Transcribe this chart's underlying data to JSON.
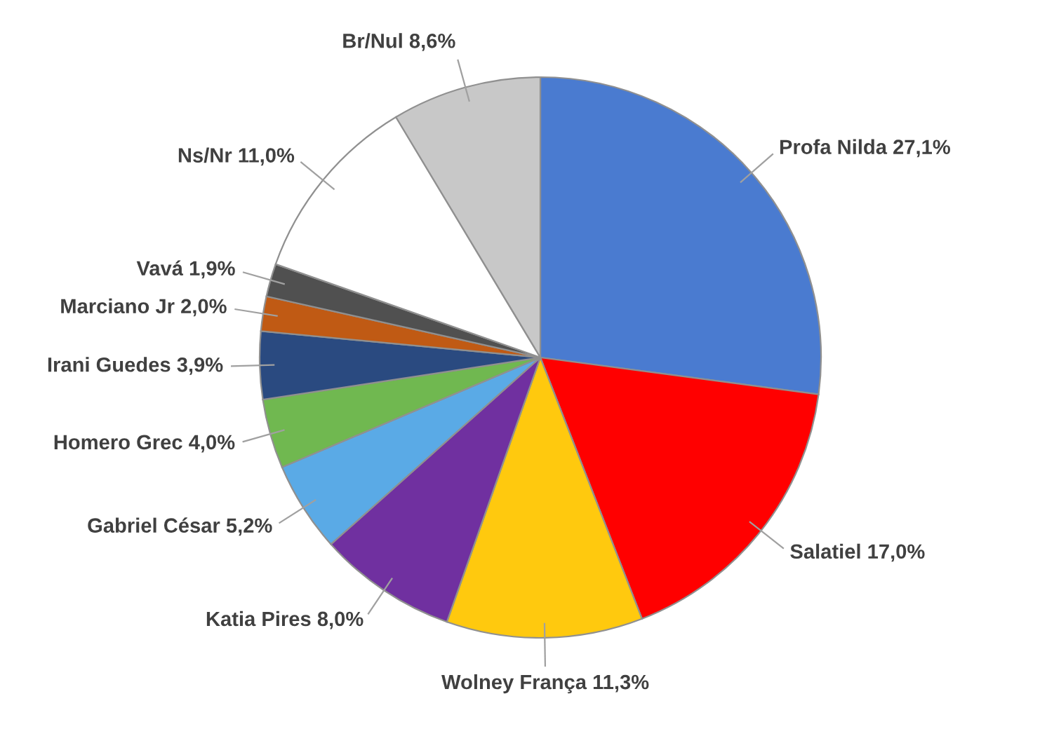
{
  "chart_data": {
    "type": "pie",
    "categories": [
      "Profa Nilda",
      "Salatiel",
      "Wolney França",
      "Katia Pires",
      "Gabriel César",
      "Homero Grec",
      "Irani Guedes",
      "Marciano Jr",
      "Vavá",
      "Ns/Nr",
      "Br/Nul"
    ],
    "values": [
      27.1,
      17.0,
      11.3,
      8.0,
      5.2,
      4.0,
      3.9,
      2.0,
      1.9,
      11.0,
      8.6
    ],
    "value_labels": [
      "27,1%",
      "17,0%",
      "11,3%",
      "8,0%",
      "5,2%",
      "4,0%",
      "3,9%",
      "2,0%",
      "1,9%",
      "11,0%",
      "8,6%"
    ],
    "colors": [
      "#4a7bd0",
      "#ff0000",
      "#ffc90e",
      "#7030a0",
      "#5aaae6",
      "#70b850",
      "#2a4a80",
      "#c05a14",
      "#505050",
      "#ffffff",
      "#c8c8c8"
    ]
  }
}
